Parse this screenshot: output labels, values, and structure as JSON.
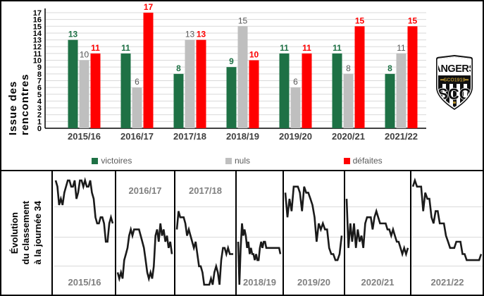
{
  "colors": {
    "win": "#1e7145",
    "draw": "#bfbfbf",
    "loss": "#ff0000",
    "draw_label": "#595959",
    "season_label": "#3f3f3f",
    "panel_label": "#808080",
    "gridline": "#d9d9d9",
    "axis": "#000000",
    "line": "#1a1a1a",
    "logo_gold": "#b08d2f"
  },
  "bar_chart_meta": {
    "axis_title": "Issue des rencontres"
  },
  "sparkline_meta": {
    "title_lines": [
      "Évolution",
      "du classement",
      "à la journée 34"
    ]
  },
  "logo": {
    "club": "Angers SCO",
    "text_top": "ANGERS",
    "text_band": "SCO1919",
    "text_main": "SCO"
  },
  "chart_data": [
    {
      "type": "bar",
      "title": "Issue des rencontres",
      "categories": [
        "2015/16",
        "2016/17",
        "2017/18",
        "2018/19",
        "2019/20",
        "2020/21",
        "2021/22"
      ],
      "series": [
        {
          "name": "victoires",
          "color": "#1e7145",
          "values": [
            13,
            11,
            8,
            9,
            11,
            11,
            8
          ]
        },
        {
          "name": "nuls",
          "color": "#bfbfbf",
          "values": [
            10,
            6,
            13,
            15,
            6,
            8,
            11
          ]
        },
        {
          "name": "défaites",
          "color": "#ff0000",
          "values": [
            11,
            17,
            13,
            10,
            11,
            15,
            15
          ]
        }
      ],
      "ylim": [
        0,
        17
      ],
      "y_ticks": [
        0,
        1,
        2,
        3,
        4,
        5,
        6,
        7,
        8,
        9,
        10,
        11,
        12,
        13,
        14,
        15,
        16,
        17
      ],
      "grid": true,
      "legend_position": "bottom"
    },
    {
      "type": "line",
      "title": "Évolution du classement à la journée 34",
      "ylim": [
        1,
        20
      ],
      "y_inverted": true,
      "grid": true,
      "panels": [
        {
          "season": "2015/16",
          "label_pos": "bottom",
          "width": 86,
          "ranking": [
            2,
            3,
            6,
            5,
            6,
            4,
            3,
            2,
            2,
            3,
            3,
            2,
            5,
            4,
            2,
            2,
            3,
            2,
            3,
            3,
            2,
            4,
            5,
            8,
            9,
            9,
            8,
            8,
            9,
            12,
            12,
            9,
            8,
            9
          ]
        },
        {
          "season": "2016/17",
          "label_pos": "top",
          "width": 82,
          "ranking": [
            17,
            18,
            17,
            18,
            15,
            14,
            13,
            11,
            10,
            11,
            10,
            10,
            10,
            10,
            11,
            12,
            13,
            15,
            17,
            18,
            17,
            18,
            16,
            11,
            10,
            12,
            9,
            11,
            10,
            12,
            11,
            13,
            12,
            14
          ]
        },
        {
          "season": "2017/18",
          "label_pos": "top",
          "width": 85,
          "ranking": [
            10,
            7,
            8,
            8,
            8,
            9,
            11,
            10,
            11,
            12,
            13,
            12,
            14,
            16,
            16,
            17,
            19,
            19,
            19,
            19,
            18,
            19,
            17,
            16,
            17,
            19,
            15,
            13,
            13,
            14,
            13,
            14,
            14,
            14
          ]
        },
        {
          "season": "2018/19",
          "label_pos": "bottom",
          "width": 65,
          "ranking": [
            12,
            19,
            13,
            9,
            11,
            10,
            11,
            13,
            12,
            14,
            13,
            14,
            14,
            15,
            14,
            15,
            15,
            13,
            12,
            13,
            12,
            12,
            13,
            13,
            13,
            13,
            13,
            13,
            13,
            13,
            13,
            13,
            13,
            14
          ]
        },
        {
          "season": "2019/20",
          "label_pos": "bottom",
          "width": 85,
          "ranking": [
            4,
            8,
            5,
            7,
            3,
            3,
            3,
            4,
            7,
            3,
            4,
            4,
            5,
            6,
            8,
            12,
            9,
            10,
            9,
            10,
            10,
            13,
            14,
            14,
            15,
            15,
            14,
            11
          ]
        },
        {
          "season": "2020/21",
          "label_pos": "bottom",
          "width": 92,
          "ranking": [
            5,
            13,
            9,
            12,
            9,
            13,
            10,
            12,
            11,
            13,
            9,
            8,
            8,
            8,
            10,
            8,
            7,
            8,
            9,
            9,
            9,
            9,
            10,
            10,
            11,
            10,
            11,
            12,
            12,
            13,
            14,
            13,
            14,
            13
          ]
        },
        {
          "season": "2021/22",
          "label_pos": "bottom",
          "width": 102,
          "ranking": [
            3,
            2,
            3,
            3,
            3,
            7,
            4,
            5,
            5,
            8,
            9,
            7,
            7,
            9,
            9,
            9,
            11,
            12,
            13,
            13,
            13,
            12,
            12,
            12,
            14,
            14,
            15,
            15,
            15,
            15,
            15,
            15,
            15,
            14
          ]
        }
      ]
    }
  ]
}
